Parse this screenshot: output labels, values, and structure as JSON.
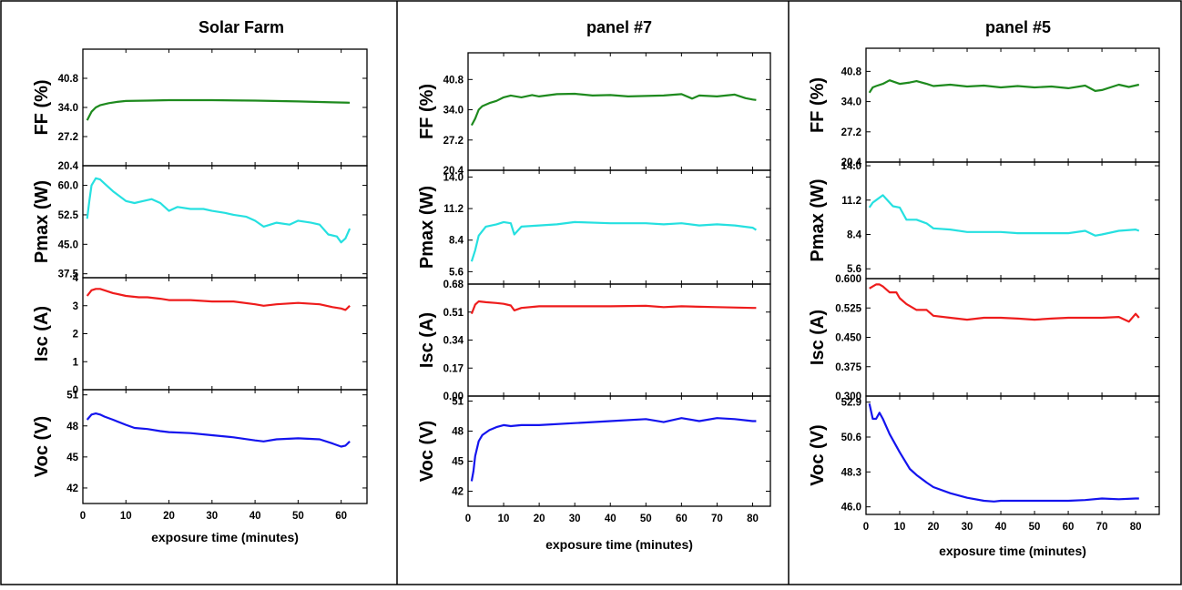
{
  "chart_data": [
    {
      "type": "line",
      "title": "Solar Farm",
      "xlabel": "exposure time (minutes)",
      "xlim": [
        0,
        66
      ],
      "xticks": [
        0,
        10,
        20,
        30,
        40,
        50,
        60
      ],
      "panels": [
        {
          "ylabel": "FF (%)",
          "color": "#1e8a1e",
          "ylim": [
            20.4,
            47.6
          ],
          "yticks": [
            "20.4",
            "27.2",
            "34.0",
            "40.8"
          ],
          "x": [
            1,
            2,
            3,
            4,
            6,
            8,
            10,
            15,
            20,
            30,
            40,
            50,
            58,
            62
          ],
          "y": [
            31.0,
            33.0,
            34.0,
            34.5,
            35.0,
            35.3,
            35.5,
            35.6,
            35.7,
            35.7,
            35.6,
            35.4,
            35.2,
            35.1
          ]
        },
        {
          "ylabel": "Pmax (W)",
          "color": "#26e0e0",
          "ylim": [
            36.5,
            65
          ],
          "yticks": [
            "37.5",
            "45.0",
            "52.5",
            "60.0"
          ],
          "x": [
            1,
            1.5,
            2,
            3,
            4,
            5,
            7,
            10,
            12,
            14,
            16,
            18,
            20,
            22,
            25,
            28,
            30,
            33,
            35,
            38,
            40,
            42,
            45,
            48,
            50,
            53,
            55,
            57,
            59,
            60,
            61,
            62
          ],
          "y": [
            51.5,
            56.0,
            60.0,
            61.8,
            61.5,
            60.5,
            58.5,
            56.0,
            55.5,
            56.0,
            56.5,
            55.5,
            53.5,
            54.5,
            54.0,
            54.0,
            53.5,
            53.0,
            52.5,
            52.0,
            51.0,
            49.5,
            50.5,
            50.0,
            51.0,
            50.5,
            50.0,
            47.5,
            47.0,
            45.5,
            46.5,
            49.0
          ]
        },
        {
          "ylabel": "Isc (A)",
          "color": "#ee1c1c",
          "ylim": [
            0,
            4
          ],
          "yticks": [
            "0",
            "1",
            "2",
            "3",
            "4"
          ],
          "x": [
            1,
            2,
            3,
            4,
            5,
            7,
            10,
            13,
            15,
            18,
            20,
            25,
            30,
            35,
            40,
            42,
            45,
            50,
            55,
            58,
            60,
            61,
            62
          ],
          "y": [
            3.35,
            3.55,
            3.6,
            3.6,
            3.55,
            3.45,
            3.35,
            3.3,
            3.3,
            3.25,
            3.2,
            3.2,
            3.15,
            3.15,
            3.05,
            3.0,
            3.05,
            3.1,
            3.05,
            2.95,
            2.9,
            2.85,
            3.0
          ]
        },
        {
          "ylabel": "Voc (V)",
          "color": "#1414ee",
          "ylim": [
            40.5,
            51.5
          ],
          "yticks": [
            "42",
            "45",
            "48",
            "51"
          ],
          "x": [
            1,
            2,
            3,
            4,
            5,
            7,
            10,
            12,
            15,
            18,
            20,
            25,
            30,
            35,
            40,
            42,
            45,
            50,
            55,
            58,
            60,
            61,
            62
          ],
          "y": [
            48.6,
            49.1,
            49.2,
            49.1,
            48.9,
            48.6,
            48.1,
            47.8,
            47.7,
            47.5,
            47.4,
            47.3,
            47.1,
            46.9,
            46.6,
            46.5,
            46.7,
            46.8,
            46.7,
            46.3,
            46.0,
            46.1,
            46.5
          ]
        }
      ]
    },
    {
      "type": "line",
      "title": "panel #7",
      "xlabel": "exposure time (minutes)",
      "xlim": [
        0,
        85
      ],
      "xticks": [
        0,
        10,
        20,
        30,
        40,
        50,
        60,
        70,
        80
      ],
      "panels": [
        {
          "ylabel": "FF (%)",
          "color": "#1e8a1e",
          "ylim": [
            20.4,
            46.8
          ],
          "yticks": [
            "20.4",
            "27.2",
            "34.0",
            "40.8"
          ],
          "x": [
            1,
            2,
            3,
            4,
            6,
            8,
            10,
            12,
            15,
            18,
            20,
            25,
            30,
            35,
            40,
            45,
            50,
            55,
            60,
            63,
            65,
            70,
            75,
            78,
            80,
            81
          ],
          "y": [
            30.5,
            32.0,
            34.0,
            34.8,
            35.5,
            36.0,
            36.8,
            37.2,
            36.8,
            37.3,
            37.0,
            37.5,
            37.6,
            37.2,
            37.3,
            37.0,
            37.1,
            37.2,
            37.5,
            36.5,
            37.2,
            37.0,
            37.4,
            36.6,
            36.3,
            36.2
          ]
        },
        {
          "ylabel": "Pmax (W)",
          "color": "#26e0e0",
          "ylim": [
            4.5,
            14.6
          ],
          "yticks": [
            "5.6",
            "8.4",
            "11.2",
            "14.0"
          ],
          "x": [
            1,
            2,
            3,
            5,
            8,
            10,
            12,
            13,
            15,
            20,
            25,
            30,
            40,
            50,
            55,
            60,
            65,
            70,
            75,
            80,
            81
          ],
          "y": [
            6.5,
            7.5,
            8.8,
            9.6,
            9.8,
            10.0,
            9.9,
            8.9,
            9.6,
            9.7,
            9.8,
            10.0,
            9.9,
            9.9,
            9.8,
            9.9,
            9.7,
            9.8,
            9.7,
            9.5,
            9.3
          ]
        },
        {
          "ylabel": "Isc (A)",
          "color": "#ee1c1c",
          "ylim": [
            0,
            0.68
          ],
          "yticks": [
            "0.00",
            "0.17",
            "0.34",
            "0.51",
            "0.68"
          ],
          "x": [
            1,
            2,
            3,
            5,
            8,
            10,
            12,
            13,
            15,
            20,
            30,
            40,
            50,
            55,
            60,
            70,
            80,
            81
          ],
          "y": [
            0.5,
            0.555,
            0.575,
            0.57,
            0.565,
            0.56,
            0.55,
            0.52,
            0.535,
            0.545,
            0.545,
            0.545,
            0.548,
            0.54,
            0.545,
            0.54,
            0.535,
            0.535
          ]
        },
        {
          "ylabel": "Voc (V)",
          "color": "#1414ee",
          "ylim": [
            40.5,
            51.5
          ],
          "yticks": [
            "42",
            "45",
            "48",
            "51"
          ],
          "x": [
            1,
            1.5,
            2,
            3,
            4,
            6,
            8,
            10,
            12,
            15,
            20,
            30,
            40,
            50,
            55,
            60,
            65,
            70,
            75,
            80,
            81
          ],
          "y": [
            43.0,
            44.0,
            45.5,
            47.0,
            47.6,
            48.1,
            48.4,
            48.6,
            48.5,
            48.6,
            48.6,
            48.8,
            49.0,
            49.2,
            48.9,
            49.3,
            49.0,
            49.3,
            49.2,
            49.0,
            49.0
          ]
        }
      ]
    },
    {
      "type": "line",
      "title": "panel #5",
      "xlabel": "exposure time (minutes)",
      "xlim": [
        0,
        87
      ],
      "xticks": [
        0,
        10,
        20,
        30,
        40,
        50,
        60,
        70,
        80
      ],
      "panels": [
        {
          "ylabel": "FF (%)",
          "color": "#1e8a1e",
          "ylim": [
            20.4,
            46.0
          ],
          "yticks": [
            "20.4",
            "27.2",
            "34.0",
            "40.8"
          ],
          "x": [
            1,
            2,
            3,
            5,
            7,
            10,
            13,
            15,
            18,
            20,
            25,
            30,
            35,
            40,
            45,
            50,
            55,
            60,
            65,
            68,
            70,
            75,
            78,
            81
          ],
          "y": [
            36.0,
            37.2,
            37.5,
            38.0,
            38.8,
            38.0,
            38.3,
            38.6,
            38.0,
            37.5,
            37.8,
            37.4,
            37.6,
            37.2,
            37.5,
            37.2,
            37.4,
            37.0,
            37.6,
            36.4,
            36.6,
            37.8,
            37.3,
            37.8
          ]
        },
        {
          "ylabel": "Pmax (W)",
          "color": "#26e0e0",
          "ylim": [
            4.8,
            14.3
          ],
          "yticks": [
            "5.6",
            "8.4",
            "11.2",
            "14.0"
          ],
          "x": [
            1,
            2,
            3,
            5,
            7,
            8,
            10,
            12,
            15,
            18,
            20,
            25,
            30,
            35,
            40,
            45,
            50,
            55,
            60,
            65,
            68,
            70,
            75,
            80,
            81
          ],
          "y": [
            10.6,
            11.0,
            11.2,
            11.6,
            11.0,
            10.7,
            10.6,
            9.6,
            9.6,
            9.3,
            8.9,
            8.8,
            8.6,
            8.6,
            8.6,
            8.5,
            8.5,
            8.5,
            8.5,
            8.7,
            8.3,
            8.4,
            8.7,
            8.8,
            8.7
          ]
        },
        {
          "ylabel": "Isc (A)",
          "color": "#ee1c1c",
          "ylim": [
            0.3,
            0.6
          ],
          "yticks": [
            "0.300",
            "0.375",
            "0.450",
            "0.525",
            "0.600"
          ],
          "x": [
            1,
            2,
            3,
            4,
            5,
            7,
            9,
            10,
            12,
            15,
            18,
            20,
            25,
            30,
            35,
            40,
            45,
            50,
            55,
            60,
            65,
            70,
            75,
            78,
            80,
            81
          ],
          "y": [
            0.575,
            0.58,
            0.585,
            0.585,
            0.58,
            0.565,
            0.565,
            0.55,
            0.535,
            0.52,
            0.52,
            0.505,
            0.5,
            0.495,
            0.5,
            0.5,
            0.498,
            0.495,
            0.498,
            0.5,
            0.5,
            0.5,
            0.502,
            0.49,
            0.51,
            0.5
          ]
        },
        {
          "ylabel": "Voc (V)",
          "color": "#1414ee",
          "ylim": [
            45.5,
            53.3
          ],
          "yticks": [
            "46.0",
            "48.3",
            "50.6",
            "52.9"
          ],
          "x": [
            1,
            2,
            3,
            4,
            5,
            7,
            10,
            13,
            15,
            18,
            20,
            25,
            30,
            35,
            38,
            40,
            45,
            50,
            55,
            60,
            65,
            70,
            75,
            80,
            81
          ],
          "y": [
            52.8,
            51.8,
            51.8,
            52.2,
            51.8,
            50.8,
            49.6,
            48.5,
            48.1,
            47.6,
            47.3,
            46.9,
            46.6,
            46.4,
            46.35,
            46.4,
            46.4,
            46.4,
            46.4,
            46.4,
            46.45,
            46.55,
            46.5,
            46.55,
            46.55
          ]
        }
      ]
    }
  ]
}
